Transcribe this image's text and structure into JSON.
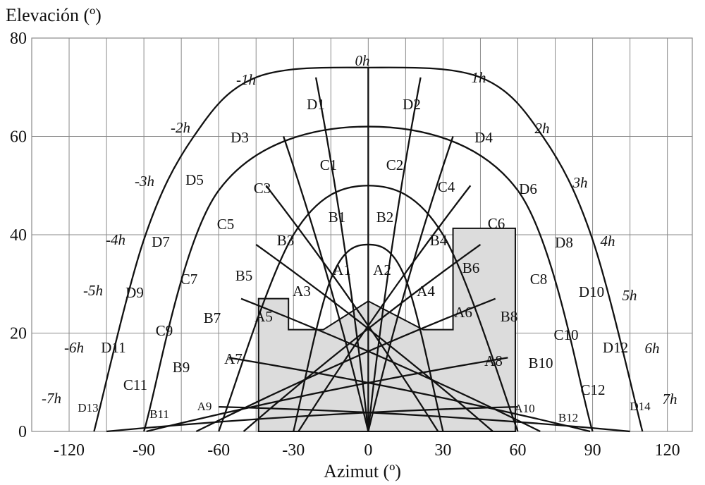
{
  "chart_data": {
    "type": "line",
    "title": "",
    "xlabel": "Azimut (º)",
    "ylabel": "Elevación (º)",
    "xlim": [
      -135,
      130
    ],
    "ylim": [
      0,
      80
    ],
    "xticks": [
      -120,
      -90,
      -60,
      -30,
      0,
      30,
      60,
      90,
      120
    ],
    "xtick_labels": [
      "-120",
      "-90",
      "-60",
      "-30",
      "0",
      "30",
      "60",
      "90",
      "120"
    ],
    "yticks": [
      0,
      20,
      40,
      60,
      80
    ],
    "ytick_labels": [
      "0",
      "20",
      "40",
      "60",
      "80"
    ],
    "grid": true,
    "series": [
      {
        "points": [
          [
            -110,
            0
          ],
          [
            -90,
            39
          ],
          [
            -70,
            60
          ],
          [
            -45,
            72
          ],
          [
            0,
            74
          ],
          [
            45,
            72
          ],
          [
            70,
            60
          ],
          [
            90,
            39
          ],
          [
            110,
            0
          ]
        ]
      },
      {
        "points": [
          [
            -90,
            0
          ],
          [
            -60,
            49
          ],
          [
            0,
            62
          ],
          [
            60,
            49
          ],
          [
            90,
            0
          ]
        ]
      },
      {
        "points": [
          [
            -60,
            0
          ],
          [
            -30,
            40
          ],
          [
            0,
            50
          ],
          [
            30,
            40
          ],
          [
            60,
            0
          ]
        ]
      },
      {
        "points": [
          [
            -30,
            0
          ],
          [
            -15,
            31
          ],
          [
            0,
            38
          ],
          [
            15,
            31
          ],
          [
            30,
            0
          ]
        ]
      }
    ],
    "hour_lines": [
      {
        "label": "0h",
        "points": [
          [
            0,
            74
          ],
          [
            0,
            0
          ]
        ]
      },
      {
        "label": "1h",
        "points": [
          [
            21,
            72
          ],
          [
            0,
            0
          ]
        ]
      },
      {
        "label": "-1h",
        "points": [
          [
            -21,
            72
          ],
          [
            0,
            0
          ]
        ]
      },
      {
        "label": "2h",
        "points": [
          [
            34,
            60
          ],
          [
            0,
            0
          ]
        ]
      },
      {
        "label": "-2h",
        "points": [
          [
            -34,
            60
          ],
          [
            0,
            0
          ]
        ]
      },
      {
        "label": "3h",
        "points": [
          [
            41,
            50
          ],
          [
            -28,
            0
          ]
        ]
      },
      {
        "label": "-3h",
        "points": [
          [
            -41,
            50
          ],
          [
            28,
            0
          ]
        ]
      },
      {
        "label": "4h",
        "points": [
          [
            45,
            38
          ],
          [
            -50,
            0
          ]
        ]
      },
      {
        "label": "-4h",
        "points": [
          [
            -45,
            38
          ],
          [
            50,
            0
          ]
        ]
      },
      {
        "label": "5h",
        "points": [
          [
            51,
            27
          ],
          [
            -69,
            0
          ]
        ]
      },
      {
        "label": "-5h",
        "points": [
          [
            -51,
            27
          ],
          [
            69,
            0
          ]
        ]
      },
      {
        "label": "6h",
        "points": [
          [
            56,
            15
          ],
          [
            -89,
            0
          ]
        ]
      },
      {
        "label": "-6h",
        "points": [
          [
            -56,
            15
          ],
          [
            89,
            0
          ]
        ]
      },
      {
        "label": "7h",
        "points": [
          [
            60,
            5
          ],
          [
            -105,
            0
          ]
        ]
      },
      {
        "label": "-7h",
        "points": [
          [
            -60,
            5
          ],
          [
            105,
            0
          ]
        ]
      }
    ],
    "obstacle": [
      [
        -44,
        0
      ],
      [
        -44,
        27
      ],
      [
        -32,
        27
      ],
      [
        -32,
        20.7
      ],
      [
        -18,
        20.7
      ],
      [
        0,
        26.5
      ],
      [
        22,
        20.7
      ],
      [
        34,
        20.7
      ],
      [
        34,
        41.3
      ],
      [
        59,
        41.3
      ],
      [
        59,
        0
      ]
    ],
    "zones": {
      "D": [
        "D1",
        "D2",
        "D3",
        "D4",
        "D5",
        "D6",
        "D7",
        "D8",
        "D9",
        "D10",
        "D11",
        "D12",
        "D13",
        "D14"
      ],
      "C": [
        "C1",
        "C2",
        "C3",
        "C4",
        "C5",
        "C6",
        "C7",
        "C8",
        "C9",
        "C10",
        "C11",
        "C12"
      ],
      "B": [
        "B1",
        "B2",
        "B3",
        "B4",
        "B5",
        "B6",
        "B7",
        "B8",
        "B9",
        "B10",
        "B11",
        "B12"
      ],
      "A": [
        "A1",
        "A2",
        "A3",
        "A4",
        "A5",
        "A6",
        "A7",
        "A8",
        "A9",
        "A10"
      ]
    }
  }
}
